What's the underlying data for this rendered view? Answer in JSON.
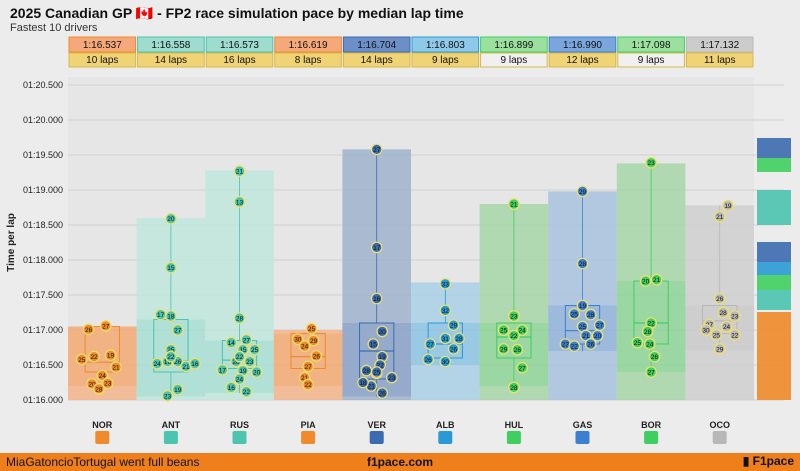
{
  "header": {
    "title": "2025 Canadian GP 🇨🇦 - FP2 race simulation pace by median lap time",
    "subtitle": "Fastest 10 drivers"
  },
  "footer": {
    "left": "MiaGatoncioTortugal went full beans",
    "center": "f1pace.com",
    "logo": "F1pace"
  },
  "chart_data": {
    "type": "box",
    "ylabel": "Time per lap",
    "ylim": [
      76.0,
      80.5
    ],
    "yticks": [
      "01:16.000",
      "01:16.500",
      "01:17.000",
      "01:17.500",
      "01:18.000",
      "01:18.500",
      "01:19.000",
      "01:19.500",
      "01:20.000",
      "01:20.500"
    ],
    "drivers": [
      {
        "code": "NOR",
        "median_label": "1:16.537",
        "laps_label": "10 laps",
        "color": "#f08a2a",
        "min": 76.2,
        "q1": 76.4,
        "q3": 77.05,
        "max": 77.05,
        "median": 76.54,
        "points": [
          [
            0.3,
            77.01,
            "26"
          ],
          [
            0.55,
            77.06,
            "27"
          ],
          [
            0.2,
            76.58,
            "25"
          ],
          [
            0.38,
            76.62,
            "22"
          ],
          [
            0.62,
            76.64,
            "19"
          ],
          [
            0.7,
            76.47,
            "21"
          ],
          [
            0.5,
            76.35,
            "24"
          ],
          [
            0.58,
            76.24,
            "23"
          ],
          [
            0.35,
            76.23,
            "20"
          ],
          [
            0.45,
            76.16,
            "28"
          ]
        ]
      },
      {
        "code": "ANT",
        "median_label": "1:16.558",
        "laps_label": "14 laps",
        "color": "#4bc4b0",
        "min": 76.05,
        "q1": 76.4,
        "q3": 77.15,
        "max": 78.6,
        "median": 76.56,
        "points": [
          [
            0.5,
            78.59,
            "20"
          ],
          [
            0.5,
            77.89,
            "15"
          ],
          [
            0.35,
            77.22,
            "17"
          ],
          [
            0.5,
            77.2,
            "18"
          ],
          [
            0.6,
            77.0,
            "27"
          ],
          [
            0.5,
            76.72,
            "25"
          ],
          [
            0.3,
            76.52,
            "24"
          ],
          [
            0.45,
            76.55,
            "16"
          ],
          [
            0.6,
            76.55,
            "26"
          ],
          [
            0.72,
            76.48,
            "21"
          ],
          [
            0.85,
            76.52,
            "16"
          ],
          [
            0.5,
            76.62,
            "22"
          ],
          [
            0.6,
            76.15,
            "19"
          ],
          [
            0.45,
            76.06,
            "23"
          ]
        ]
      },
      {
        "code": "RUS",
        "median_label": "1:16.573",
        "laps_label": "16 laps",
        "color": "#4bc4b0",
        "min": 76.1,
        "q1": 76.45,
        "q3": 76.85,
        "max": 79.28,
        "median": 76.57,
        "points": [
          [
            0.5,
            79.27,
            "21"
          ],
          [
            0.5,
            78.83,
            "13"
          ],
          [
            0.5,
            77.17,
            "28"
          ],
          [
            0.38,
            76.82,
            "14"
          ],
          [
            0.6,
            76.86,
            "27"
          ],
          [
            0.55,
            76.72,
            "15"
          ],
          [
            0.72,
            76.72,
            "25"
          ],
          [
            0.45,
            76.55,
            "26"
          ],
          [
            0.65,
            76.55,
            "23"
          ],
          [
            0.25,
            76.43,
            "17"
          ],
          [
            0.55,
            76.42,
            "19"
          ],
          [
            0.75,
            76.4,
            "20"
          ],
          [
            0.5,
            76.3,
            "24"
          ],
          [
            0.38,
            76.18,
            "16"
          ],
          [
            0.6,
            76.12,
            "22"
          ],
          [
            0.5,
            76.62,
            "22"
          ]
        ]
      },
      {
        "code": "PIA",
        "median_label": "1:16.619",
        "laps_label": "8 laps",
        "color": "#f08a2a",
        "min": 76.2,
        "q1": 76.45,
        "q3": 76.95,
        "max": 77.0,
        "median": 76.62,
        "points": [
          [
            0.55,
            77.02,
            "25"
          ],
          [
            0.35,
            76.87,
            "30"
          ],
          [
            0.58,
            76.85,
            "29"
          ],
          [
            0.45,
            76.77,
            "24"
          ],
          [
            0.62,
            76.63,
            "26"
          ],
          [
            0.5,
            76.48,
            "27"
          ],
          [
            0.45,
            76.32,
            "21"
          ],
          [
            0.5,
            76.22,
            "22"
          ]
        ]
      },
      {
        "code": "VER",
        "median_label": "1:16.704",
        "laps_label": "14 laps",
        "color": "#3b6bb0",
        "min": 76.05,
        "q1": 76.3,
        "q3": 77.1,
        "max": 79.58,
        "median": 76.7,
        "points": [
          [
            0.5,
            79.58,
            "27"
          ],
          [
            0.5,
            78.18,
            "17"
          ],
          [
            0.5,
            77.45,
            "16"
          ],
          [
            0.58,
            76.98,
            "20"
          ],
          [
            0.45,
            76.8,
            "15"
          ],
          [
            0.58,
            76.62,
            "19"
          ],
          [
            0.35,
            76.42,
            "28"
          ],
          [
            0.5,
            76.38,
            "24"
          ],
          [
            0.72,
            76.32,
            "23"
          ],
          [
            0.42,
            76.2,
            "21"
          ],
          [
            0.58,
            76.1,
            "26"
          ],
          [
            0.55,
            76.5,
            "22"
          ],
          [
            0.5,
            76.4,
            "25"
          ],
          [
            0.3,
            76.25,
            "18"
          ]
        ]
      },
      {
        "code": "ALB",
        "median_label": "1:16.803",
        "laps_label": "9 laps",
        "color": "#2a9ad6",
        "min": 76.5,
        "q1": 76.6,
        "q3": 77.1,
        "max": 77.68,
        "median": 76.8,
        "points": [
          [
            0.5,
            77.66,
            "33"
          ],
          [
            0.5,
            77.28,
            "32"
          ],
          [
            0.62,
            77.07,
            "29"
          ],
          [
            0.28,
            76.8,
            "27"
          ],
          [
            0.5,
            76.88,
            "31"
          ],
          [
            0.7,
            76.88,
            "28"
          ],
          [
            0.62,
            76.73,
            "26"
          ],
          [
            0.25,
            76.58,
            "26"
          ],
          [
            0.5,
            76.55,
            "30"
          ]
        ]
      },
      {
        "code": "HUL",
        "median_label": "1:16.899",
        "laps_label": "9 laps",
        "color": "#3fcf5f",
        "min": 76.2,
        "q1": 76.6,
        "q3": 77.1,
        "max": 78.8,
        "median": 76.9,
        "points": [
          [
            0.5,
            78.8,
            "21"
          ],
          [
            0.5,
            77.2,
            "23"
          ],
          [
            0.35,
            77.0,
            "25"
          ],
          [
            0.62,
            77.0,
            "24"
          ],
          [
            0.5,
            76.92,
            "22"
          ],
          [
            0.35,
            76.73,
            "29"
          ],
          [
            0.55,
            76.72,
            "26"
          ],
          [
            0.62,
            76.46,
            "27"
          ],
          [
            0.5,
            76.18,
            "28"
          ]
        ]
      },
      {
        "code": "GAS",
        "median_label": "1:16.990",
        "laps_label": "12 laps",
        "color": "#3b80d0",
        "min": 76.7,
        "q1": 76.8,
        "q3": 77.35,
        "max": 78.98,
        "median": 76.99,
        "points": [
          [
            0.5,
            78.98,
            "29"
          ],
          [
            0.5,
            77.95,
            "28"
          ],
          [
            0.5,
            77.35,
            "19"
          ],
          [
            0.38,
            77.23,
            "25"
          ],
          [
            0.62,
            77.22,
            "28"
          ],
          [
            0.5,
            77.05,
            "25"
          ],
          [
            0.75,
            77.07,
            "27"
          ],
          [
            0.55,
            76.92,
            "21"
          ],
          [
            0.72,
            76.92,
            "20"
          ],
          [
            0.25,
            76.8,
            "23"
          ],
          [
            0.38,
            76.77,
            "22"
          ],
          [
            0.62,
            76.8,
            "26"
          ]
        ]
      },
      {
        "code": "BOR",
        "median_label": "1:17.098",
        "laps_label": "9 laps",
        "color": "#3fcf5f",
        "min": 76.4,
        "q1": 76.8,
        "q3": 77.7,
        "max": 79.38,
        "median": 77.1,
        "points": [
          [
            0.5,
            79.39,
            "23"
          ],
          [
            0.42,
            77.7,
            "20"
          ],
          [
            0.58,
            77.72,
            "21"
          ],
          [
            0.5,
            77.1,
            "22"
          ],
          [
            0.3,
            76.82,
            "25"
          ],
          [
            0.48,
            76.8,
            "24"
          ],
          [
            0.55,
            76.62,
            "26"
          ],
          [
            0.5,
            76.4,
            "27"
          ],
          [
            0.45,
            76.98,
            "28"
          ]
        ]
      },
      {
        "code": "OCO",
        "median_label": "1:17.132",
        "laps_label": "11 laps",
        "color": "#b8b8b8",
        "min": 76.7,
        "q1": 76.95,
        "q3": 77.35,
        "max": 78.78,
        "median": 77.13,
        "points": [
          [
            0.62,
            78.78,
            "19"
          ],
          [
            0.5,
            78.62,
            "21"
          ],
          [
            0.5,
            77.45,
            "26"
          ],
          [
            0.55,
            77.25,
            "28"
          ],
          [
            0.35,
            77.08,
            "27"
          ],
          [
            0.6,
            77.05,
            "24"
          ],
          [
            0.45,
            76.93,
            "25"
          ],
          [
            0.72,
            76.93,
            "22"
          ],
          [
            0.5,
            76.73,
            "29"
          ],
          [
            0.72,
            77.2,
            "23"
          ],
          [
            0.3,
            77.0,
            "30"
          ]
        ]
      }
    ]
  }
}
